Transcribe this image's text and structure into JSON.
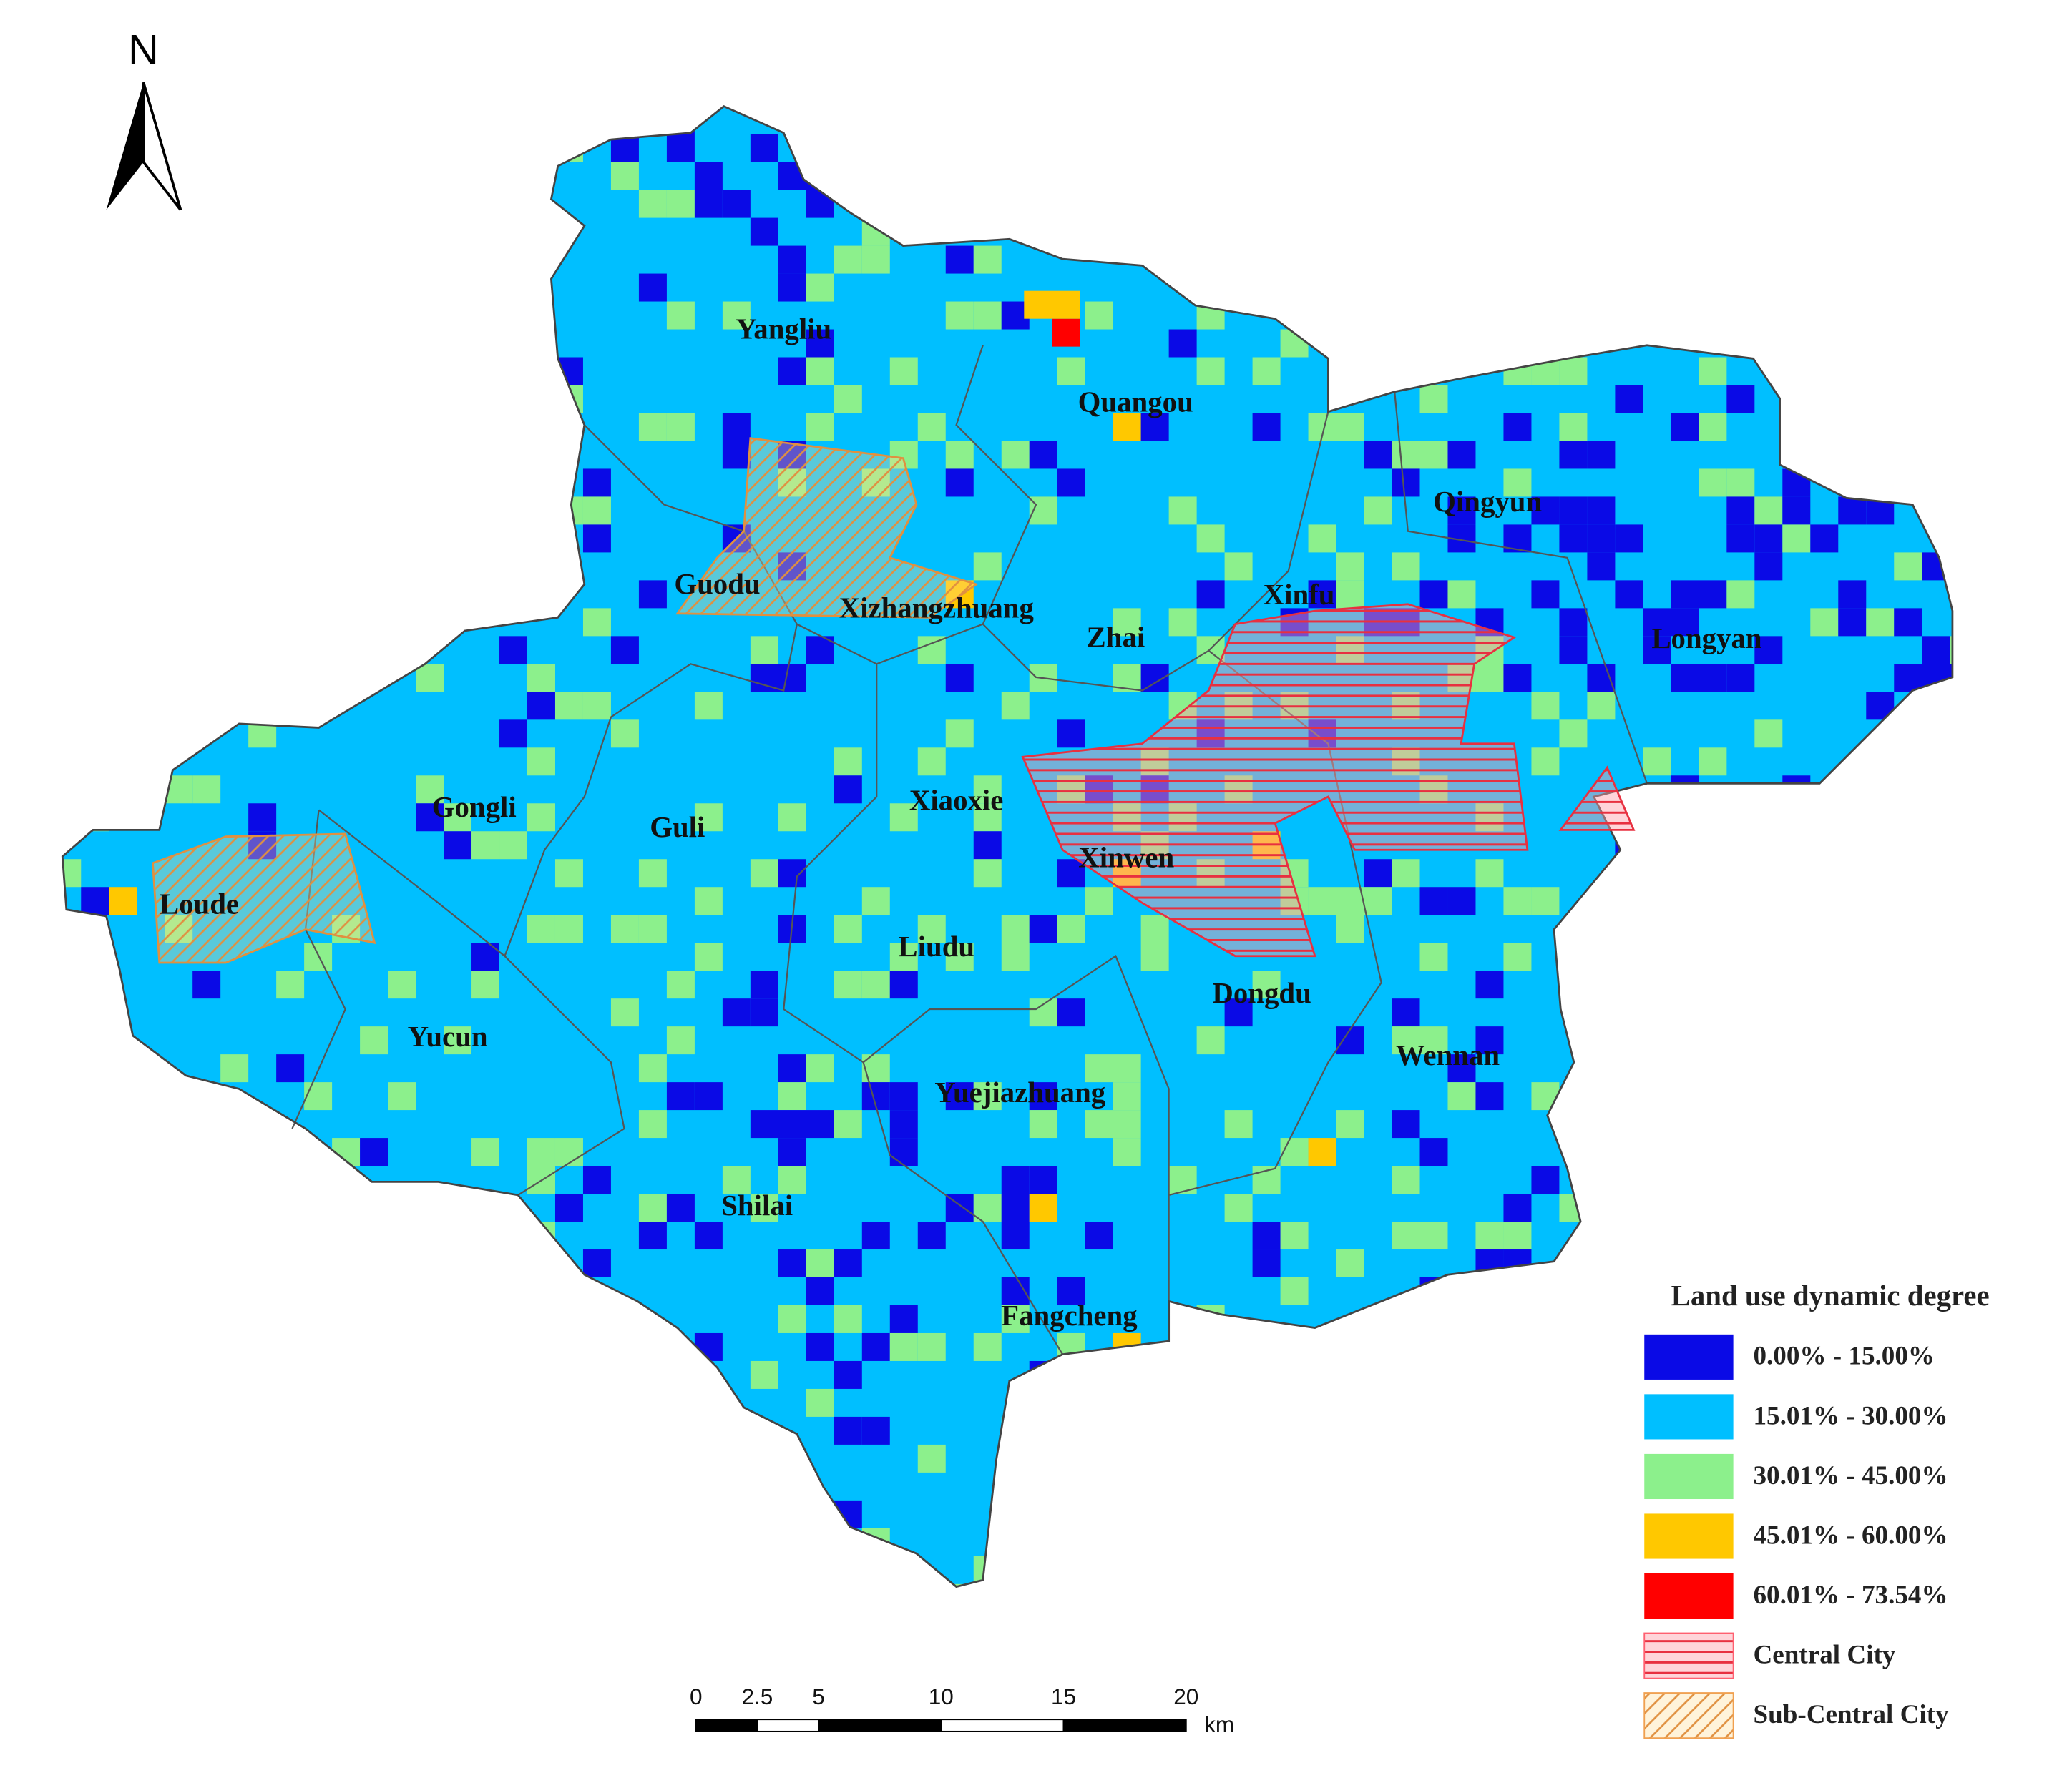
{
  "north": "N",
  "places": [
    "Yangliu",
    "Quangou",
    "Qingyun",
    "Guodu",
    "Xizhangzhuang",
    "Zhai",
    "Xinfu",
    "Longyan",
    "Gongli",
    "Guli",
    "Xiaoxie",
    "Xinwen",
    "Loude",
    "Liudu",
    "Dongdu",
    "Yucun",
    "Wennan",
    "Yuejiazhuang",
    "Shilai",
    "Fangcheng"
  ],
  "legend": {
    "title": "Land use dynamic degree",
    "items": [
      {
        "label": "0.00% - 15.00%",
        "color": "#0a0ae6"
      },
      {
        "label": "15.01% - 30.00%",
        "color": "#00bfff"
      },
      {
        "label": "30.01% - 45.00%",
        "color": "#8cf08c"
      },
      {
        "label": "45.01% - 60.00%",
        "color": "#ffc800"
      },
      {
        "label": "60.01% - 73.54%",
        "color": "#ff0000"
      },
      {
        "label": "Central City",
        "color": "#ff6070"
      },
      {
        "label": "Sub-Central City",
        "color": "#f0a050"
      }
    ]
  },
  "scale_bar": {
    "ticks": [
      0,
      2.5,
      5,
      10,
      15,
      20
    ],
    "unit": "km"
  }
}
